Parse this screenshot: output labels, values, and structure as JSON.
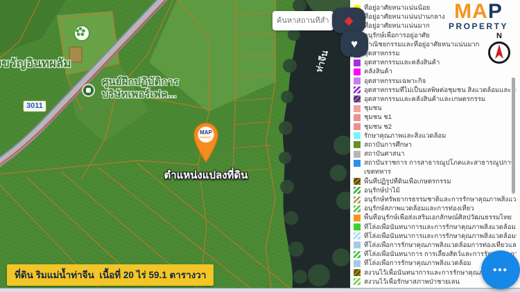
{
  "map": {
    "search_placeholder": "ค้นหาสถานที่สำคัญ",
    "road_label": "3011",
    "river_label": "ท่าจีน",
    "poi_farm": "งขวัญอินทผลัม",
    "poi_center_line1": "ศูนย์ฝึกปฏิบัติการ",
    "poi_center_line2": "บริษัทเพอร์เฟค...",
    "marker_label": "ตำแหน่งแปลงที่ดิน",
    "parcel_info": "ที่ดิน ริมแม่น้ำท่าจีน  เนื้อที่ 20 ไร่ 59.1 ตารางวา"
  },
  "branding": {
    "logo_map_left": "MA",
    "logo_map_right": "P",
    "logo_property": "PROPERTY",
    "marker_logo": "MAP",
    "marker_logo_sub": "PROPERTY",
    "compass_n": "N"
  },
  "panel": {
    "more_label": "•••"
  },
  "colors": {
    "brand-orange": "#f7941d",
    "brand-navy": "#1d3a63",
    "accent-red": "#d84334",
    "info-bg": "#f3c526",
    "more-blue": "#1787e8",
    "marker-orange": "#f68b1f"
  },
  "legend": {
    "items": [
      {
        "label": "ที่อยู่อาศัยหนาแน่นน้อย",
        "color": "#ffff00"
      },
      {
        "label": "ที่อยู่อาศัยหนาแน่นปานกลาง",
        "color": "#f7941d"
      },
      {
        "label": "ที่อยู่อาศัยหนาแน่นมาก",
        "color": "#a5841c"
      },
      {
        "label": "อนุรักษ์เพื่อการอยู่อาศัย",
        "color": "#ffff00",
        "stripe": "#ffffff"
      },
      {
        "label": "พาณิชยกรรมและที่อยู่อาศัยหนาแน่นมาก",
        "color": "#ed1c24"
      },
      {
        "label": "อุตสาหกรรม",
        "color": "#7b259c"
      },
      {
        "label": "อุตสาหกรรมและคลังสินค้า",
        "color": "#a62ee0"
      },
      {
        "label": "คลังสินค้า",
        "color": "#ff00ff"
      },
      {
        "label": "อุตสาหกรรมเฉพาะกิจ",
        "color": "#c57df0"
      },
      {
        "label": "อุตสาหกรรมที่ไม่เป็นมลพิษต่อชุมชน สิ่งแวดล้อมและคลังสินค้า",
        "color": "#8e2bd0",
        "stripe": "#ffffff"
      },
      {
        "label": "อุตสาหกรรมและคลังสินค้าและเกษตรกรรม",
        "color": "#8c5fa8",
        "stripe": "#3f2354"
      },
      {
        "label": "ชุมชน",
        "color": "#f2a2a2"
      },
      {
        "label": "ชุมชน ช1",
        "color": "#ee8f8f"
      },
      {
        "label": "ชุมชน ช2",
        "color": "#ee8f8f"
      },
      {
        "label": "รักษาคุณภาพและสิ่งแวดล้อม",
        "color": "#7df3f9"
      },
      {
        "label": "สถาบันการศึกษา",
        "color": "#6b8e23"
      },
      {
        "label": "สถาบันศาสนา",
        "color": "#b5b5b5"
      },
      {
        "label": "สถาบันราชการ การสาธารณูปโภคและสาธารณูปการ",
        "label2": "เขตทหาร",
        "color": "#2b8fe8"
      },
      {
        "label": "พื้นที่ปฏิรูปที่ดินเพื่อเกษตรกรรม",
        "color": "#9a7d1e",
        "stripe": "#4d3e0a"
      },
      {
        "label": "อนุรักษ์ป่าไม้",
        "color": "#3faf4e",
        "stripe": "#ffffff"
      },
      {
        "label": "อนุรักษ์ทรัพยากรธรรมชาติและการรักษาคุณภาพสิ่งแวดล้อม",
        "color": "#b3a05a",
        "stripe": "#ffffff"
      },
      {
        "label": "อนุรักษ์สภาพแวดล้อมและการท่องเที่ยว",
        "color": "#62c152",
        "stripe": "#ffffff"
      },
      {
        "label": "พื้นที่อนุรักษ์เพื่อส่งเสริมเอกลักษณ์ศิลปวัฒนธรรมไทย",
        "color": "#f7941d"
      },
      {
        "label": "ที่โล่งเพื่อนันทนาการและการรักษาคุณภาพสิ่งแวดล้อม",
        "color": "#3bd32c"
      },
      {
        "label": "ที่โล่งเพื่อนันทนาการและการรักษาคุณภาพสิ่งแวดล้อมชายฝั่ง",
        "color": "#a8d8ee",
        "stripe": "#ffffff"
      },
      {
        "label": "ที่โล่งเพื่อการรักษาคุณภาพสิ่งแวดล้อมการท่องเที่ยวและการป",
        "color": "#a6cbe8"
      },
      {
        "label": "ที่โล่งเพื่อนันทนาการ การเลี้ยงสัตว์และการรักษาคุณภาพสิ่งแว",
        "color": "#4cc24a",
        "stripe": "#ffffff"
      },
      {
        "label": "ที่โล่งเพื่อการรักษาคุณภาพสิ่งแวดล้อม",
        "color": "#a6cbe8"
      },
      {
        "label": "สงวนไว้เพื่อนันทนาการและการรักษาคุณภาพสิ่งแวด",
        "color": "#968414",
        "stripe": "#5a4e0c"
      },
      {
        "label": "สงวนไว้เพื่อรักษาสภาพป่าชายเลน",
        "color": "#7ccf5a",
        "stripe": "#ffffff"
      }
    ]
  }
}
